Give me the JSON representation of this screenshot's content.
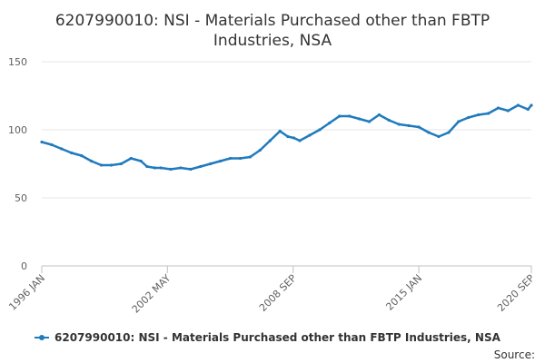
{
  "chart_data": {
    "type": "line",
    "title_lines": [
      "6207990010: NSI - Materials Purchased other than FBTP",
      "Industries, NSA"
    ],
    "x_tick_labels": [
      "1996 JAN",
      "2002 MAY",
      "2008 SEP",
      "2015 JAN",
      "2020 SEP"
    ],
    "x_tick_years": [
      1996.0,
      2002.33,
      2008.67,
      2015.0,
      2020.67
    ],
    "x_range": [
      1996.0,
      2020.67
    ],
    "ylim": [
      0,
      150
    ],
    "y_ticks": [
      0,
      50,
      100,
      150
    ],
    "y_tick_labels": [
      "0",
      "50",
      "100",
      "150"
    ],
    "grid": true,
    "legend_position": "bottom",
    "source_label": "Source:",
    "color": "#1f7bbd",
    "series": [
      {
        "name": "6207990010: NSI - Materials Purchased other than FBTP Industries, NSA",
        "x": [
          1996.0,
          1996.5,
          1997.0,
          1997.5,
          1998.0,
          1998.5,
          1999.0,
          1999.5,
          2000.0,
          2000.5,
          2001.0,
          2001.3,
          2001.7,
          2002.0,
          2002.5,
          2003.0,
          2003.5,
          2004.0,
          2004.5,
          2005.0,
          2005.5,
          2006.0,
          2006.5,
          2007.0,
          2007.5,
          2008.0,
          2008.4,
          2008.7,
          2009.0,
          2009.5,
          2010.0,
          2010.5,
          2011.0,
          2011.5,
          2012.0,
          2012.5,
          2013.0,
          2013.5,
          2014.0,
          2014.5,
          2015.0,
          2015.5,
          2016.0,
          2016.5,
          2017.0,
          2017.5,
          2018.0,
          2018.5,
          2019.0,
          2019.5,
          2020.0,
          2020.5,
          2020.67
        ],
        "y": [
          91,
          89,
          86,
          83,
          81,
          77,
          74,
          74,
          75,
          79,
          77,
          73,
          72,
          72,
          71,
          72,
          71,
          73,
          75,
          77,
          79,
          79,
          80,
          85,
          92,
          99,
          95,
          94,
          92,
          96,
          100,
          105,
          110,
          110,
          108,
          106,
          111,
          107,
          104,
          103,
          102,
          98,
          95,
          98,
          106,
          109,
          111,
          112,
          116,
          114,
          118,
          115,
          118
        ]
      }
    ]
  }
}
